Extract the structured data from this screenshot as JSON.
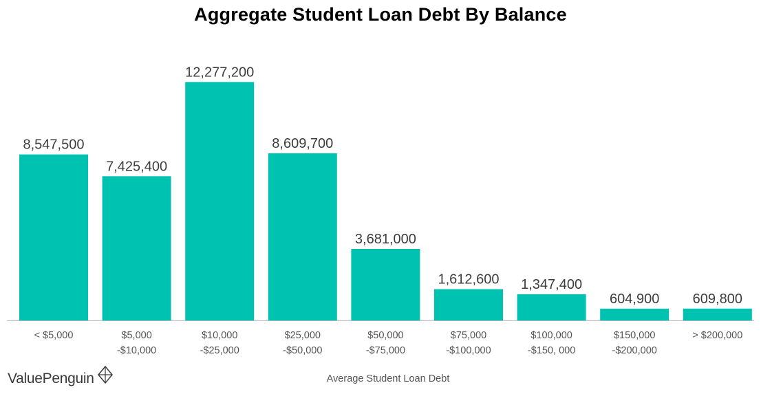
{
  "brand": {
    "name": "ValuePenguin",
    "logo_icon": "diamond-logo-icon"
  },
  "colors": {
    "bar": "#00c2b0",
    "value_text": "#3d3d3d",
    "tick_text": "#555555",
    "baseline": "#bbbbbb"
  },
  "chart_data": {
    "type": "bar",
    "title": "Aggregate Student Loan Debt By Balance",
    "xlabel": "Average Student Loan Debt",
    "ylabel": "",
    "ylim": [
      0,
      12500000
    ],
    "grid": false,
    "categories": [
      [
        "< $5,000"
      ],
      [
        "$5,000",
        "-$10,000"
      ],
      [
        "$10,000",
        "-$25,000"
      ],
      [
        "$25,000",
        "-$50,000"
      ],
      [
        "$50,000",
        "-$75,000"
      ],
      [
        "$75,000",
        "-$100,000"
      ],
      [
        "$100,000",
        "-$150, 000"
      ],
      [
        "$150,000",
        "-$200,000"
      ],
      [
        "> $200,000"
      ]
    ],
    "values": [
      8547500,
      7425400,
      12277200,
      8609700,
      3681000,
      1612600,
      1347400,
      604900,
      609800
    ],
    "value_labels": [
      "8,547,500",
      "7,425,400",
      "12,277,200",
      "8,609,700",
      "3,681,000",
      "1,612,600",
      "1,347,400",
      "604,900",
      "609,800"
    ]
  }
}
